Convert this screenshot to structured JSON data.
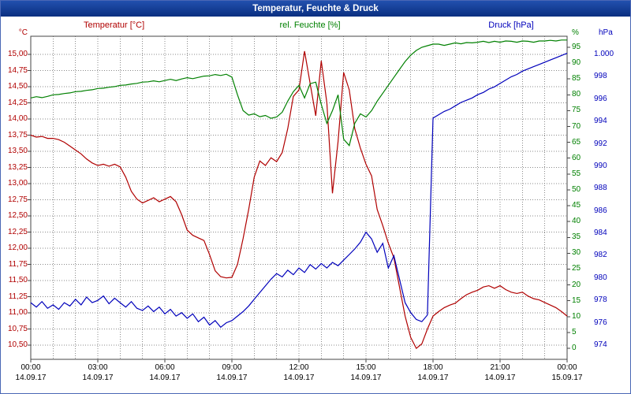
{
  "window": {
    "title": "Temperatur, Feuchte & Druck"
  },
  "colors": {
    "titlebar_bg": "#0b3590",
    "titlebar_text": "#ffffff",
    "background": "#ffffff",
    "frame_border": "#4a67b5",
    "plot_border": "#444444",
    "grid": "#8a8a8a",
    "temperature": "#b00000",
    "humidity": "#008000",
    "pressure": "#0000bb",
    "x_label_text": "#000000"
  },
  "chart_data": {
    "type": "line",
    "title": "Temperatur, Feuchte & Druck",
    "grid": true,
    "x_axis": {
      "range_hours": [
        0,
        24
      ],
      "grid_interval_hours": 1,
      "label_interval_hours": 3,
      "time_labels": [
        "00:00",
        "03:00",
        "06:00",
        "09:00",
        "12:00",
        "15:00",
        "18:00",
        "21:00",
        "00:00"
      ],
      "date_labels": [
        "14.09.17",
        "14.09.17",
        "14.09.17",
        "14.09.17",
        "14.09.17",
        "14.09.17",
        "14.09.17",
        "14.09.17",
        "15.09.17"
      ]
    },
    "axes": {
      "temperature": {
        "title": "Temperatur [°C]",
        "unit": "°C",
        "side": "left",
        "max": 15.0,
        "min": 10.5,
        "step": 0.25,
        "tick_labels": [
          "15,00",
          "14,75",
          "14,50",
          "14,25",
          "14,00",
          "13,75",
          "13,50",
          "13,25",
          "13,00",
          "12,75",
          "12,50",
          "12,25",
          "12,00",
          "11,75",
          "11,50",
          "11,25",
          "11,00",
          "10,75",
          "10,50"
        ]
      },
      "humidity": {
        "title": "rel. Feuchte [%]",
        "unit": "%",
        "side": "right",
        "max": 95,
        "min": 0,
        "step": 5,
        "tick_labels": [
          "95",
          "90",
          "85",
          "80",
          "75",
          "70",
          "65",
          "60",
          "55",
          "50",
          "45",
          "40",
          "35",
          "30",
          "25",
          "20",
          "15",
          "10",
          "5",
          "0"
        ]
      },
      "pressure": {
        "title": "Druck [hPa]",
        "unit": "hPa",
        "side": "right-outer",
        "max": 1000,
        "min": 974,
        "step": 2,
        "tick_labels": [
          "1.000",
          "998",
          "996",
          "994",
          "992",
          "990",
          "988",
          "986",
          "984",
          "982",
          "980",
          "978",
          "976",
          "974"
        ]
      }
    },
    "series": [
      {
        "name": "Temperatur",
        "axis": "temperature",
        "color": "#b00000",
        "start_hour": 0,
        "interval_minutes": 15,
        "values": [
          13.75,
          13.72,
          13.73,
          13.7,
          13.7,
          13.68,
          13.64,
          13.58,
          13.52,
          13.46,
          13.38,
          13.32,
          13.28,
          13.3,
          13.27,
          13.3,
          13.26,
          13.1,
          12.88,
          12.76,
          12.7,
          12.74,
          12.78,
          12.72,
          12.76,
          12.8,
          12.72,
          12.52,
          12.28,
          12.2,
          12.16,
          12.12,
          11.9,
          11.65,
          11.56,
          11.54,
          11.55,
          11.75,
          12.15,
          12.6,
          13.1,
          13.35,
          13.28,
          13.4,
          13.34,
          13.48,
          13.85,
          14.35,
          14.45,
          15.05,
          14.55,
          14.05,
          14.9,
          14.25,
          12.85,
          13.65,
          14.72,
          14.45,
          13.85,
          13.55,
          13.3,
          13.12,
          12.6,
          12.35,
          12.08,
          11.85,
          11.4,
          10.95,
          10.62,
          10.45,
          10.52,
          10.75,
          10.95,
          11.02,
          11.08,
          11.12,
          11.15,
          11.22,
          11.28,
          11.32,
          11.35,
          11.4,
          11.42,
          11.38,
          11.42,
          11.36,
          11.32,
          11.3,
          11.32,
          11.26,
          11.22,
          11.2,
          11.16,
          11.12,
          11.08,
          11.02,
          10.95
        ]
      },
      {
        "name": "rel. Feuchte",
        "axis": "humidity",
        "color": "#008000",
        "start_hour": 0,
        "interval_minutes": 15,
        "values": [
          79,
          79.4,
          79.1,
          79.5,
          80,
          80.1,
          80.4,
          80.6,
          81,
          81.1,
          81.4,
          81.6,
          82,
          82.1,
          82.4,
          82.6,
          83,
          83.1,
          83.4,
          83.6,
          84,
          84.1,
          84.4,
          84.1,
          84.5,
          84.9,
          84.5,
          85,
          85.4,
          85.1,
          85.5,
          85.9,
          86,
          86.4,
          86.1,
          86.5,
          85.6,
          80,
          75,
          73.6,
          74,
          73.1,
          73.5,
          72.6,
          73,
          74.5,
          78,
          81,
          83,
          79,
          83.5,
          84,
          77,
          71,
          75,
          80,
          66,
          64,
          71,
          74,
          73,
          75,
          78,
          80.5,
          83,
          85.5,
          88,
          90.5,
          92.5,
          94,
          95,
          95.5,
          96,
          96,
          95.6,
          96,
          96.4,
          96.1,
          96.5,
          96.4,
          96.6,
          96.9,
          96.5,
          96.9,
          96.6,
          97,
          96.9,
          96.6,
          97,
          96.9,
          96.6,
          97,
          97,
          97.2,
          97,
          97.3,
          97.3
        ]
      },
      {
        "name": "Druck",
        "axis": "pressure",
        "color": "#0000bb",
        "start_hour": 0,
        "interval_minutes": 15,
        "values": [
          977.8,
          977.4,
          977.9,
          977.3,
          977.6,
          977.2,
          977.8,
          977.5,
          978.1,
          977.6,
          978.3,
          977.8,
          978,
          978.4,
          977.7,
          978.2,
          977.8,
          977.4,
          977.9,
          977.3,
          977.1,
          977.5,
          977,
          977.4,
          976.8,
          977.2,
          976.6,
          976.9,
          976.4,
          976.8,
          976.1,
          976.5,
          975.8,
          976.2,
          975.6,
          976,
          976.2,
          976.6,
          977,
          977.5,
          978.1,
          978.7,
          979.3,
          979.9,
          980.4,
          980.1,
          980.7,
          980.3,
          980.9,
          980.5,
          981.2,
          980.8,
          981.3,
          980.9,
          981.4,
          981.1,
          981.6,
          982.1,
          982.6,
          983.2,
          984.1,
          983.5,
          982.3,
          983.1,
          980.9,
          982,
          979.9,
          977.8,
          976.9,
          976.3,
          976.1,
          976.7,
          994.3,
          994.6,
          994.9,
          995.1,
          995.4,
          995.7,
          995.9,
          996.1,
          996.4,
          996.6,
          996.9,
          997.1,
          997.4,
          997.7,
          998,
          998.2,
          998.5,
          998.7,
          998.9,
          999.1,
          999.3,
          999.5,
          999.7,
          999.9,
          1000.1
        ]
      }
    ]
  }
}
